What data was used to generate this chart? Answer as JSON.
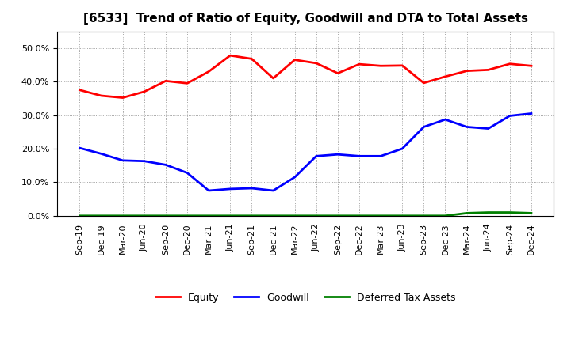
{
  "title": "[6533]  Trend of Ratio of Equity, Goodwill and DTA to Total Assets",
  "x_labels": [
    "Sep-19",
    "Dec-19",
    "Mar-20",
    "Jun-20",
    "Sep-20",
    "Dec-20",
    "Mar-21",
    "Jun-21",
    "Sep-21",
    "Dec-21",
    "Mar-22",
    "Jun-22",
    "Sep-22",
    "Dec-22",
    "Mar-23",
    "Jun-23",
    "Sep-23",
    "Dec-23",
    "Mar-24",
    "Jun-24",
    "Sep-24",
    "Dec-24"
  ],
  "equity": [
    0.375,
    0.358,
    0.352,
    0.37,
    0.402,
    0.395,
    0.43,
    0.478,
    0.468,
    0.41,
    0.465,
    0.455,
    0.425,
    0.452,
    0.447,
    0.448,
    0.396,
    0.415,
    0.432,
    0.435,
    0.453,
    0.447
  ],
  "goodwill": [
    0.202,
    0.185,
    0.165,
    0.163,
    0.152,
    0.128,
    0.075,
    0.08,
    0.082,
    0.075,
    0.115,
    0.178,
    0.183,
    0.178,
    0.178,
    0.2,
    0.265,
    0.287,
    0.265,
    0.26,
    0.298,
    0.305
  ],
  "dta": [
    0.0,
    0.0,
    0.0,
    0.0,
    0.0,
    0.0,
    0.0,
    0.0,
    0.0,
    0.0,
    0.0,
    0.0,
    0.0,
    0.0,
    0.0,
    0.0,
    0.0,
    0.0,
    0.008,
    0.01,
    0.01,
    0.008
  ],
  "equity_color": "#FF0000",
  "goodwill_color": "#0000FF",
  "dta_color": "#008000",
  "background_color": "#FFFFFF",
  "grid_color": "#888888",
  "ylim": [
    0.0,
    0.55
  ],
  "yticks": [
    0.0,
    0.1,
    0.2,
    0.3,
    0.4,
    0.5
  ],
  "title_fontsize": 11,
  "tick_fontsize": 8
}
